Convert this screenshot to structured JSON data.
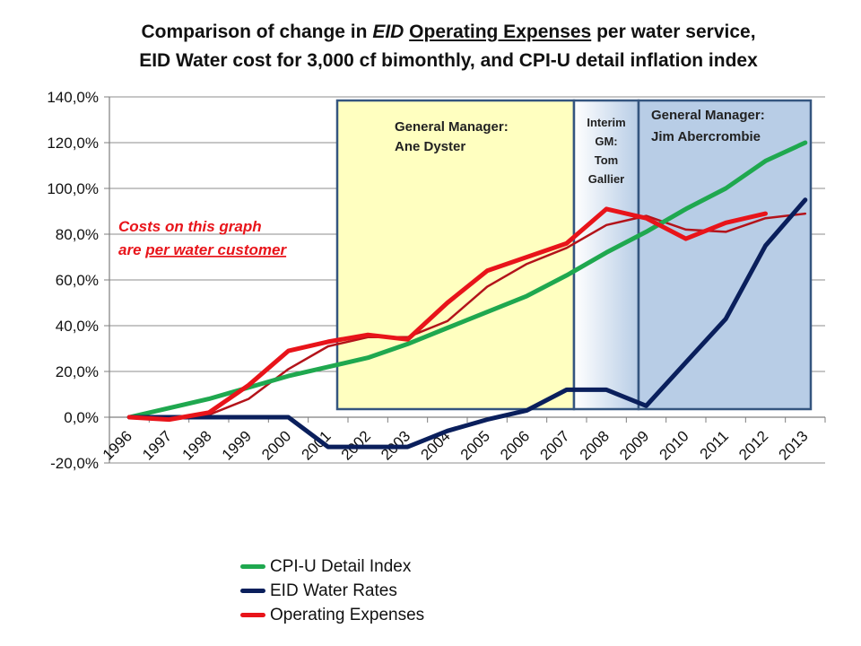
{
  "title": {
    "line1_pre": "Comparison of change in ",
    "line1_em": "EID",
    "line1_space": " ",
    "line1_u": "Operating Expenses",
    "line1_post": " per water service,",
    "line2": "EID Water cost for 3,000 cf bimonthly, and CPI-U detail inflation index"
  },
  "annotation": {
    "line1": "Costs on this graph",
    "line2_pre": "are ",
    "line2_u": "per water customer"
  },
  "periods": [
    {
      "label_lines": [
        "General Manager:",
        "Ane Dyster"
      ]
    },
    {
      "label_lines": [
        "Interim",
        "GM:",
        "Tom",
        "Gallier"
      ]
    },
    {
      "label_lines": [
        "General Manager:",
        "Jim Abercrombie"
      ]
    }
  ],
  "colors": {
    "cpi": "#1fa84f",
    "rates": "#0a1f5c",
    "opex": "#e8141a",
    "opex_thin": "#b3131a",
    "period1_fill": "#ffffc0",
    "period3_fill": "#b8cde6",
    "period_border": "#34557f",
    "annotation": "#e8141a"
  },
  "legend": [
    {
      "label": "CPI-U Detail Index",
      "color": "#1fa84f"
    },
    {
      "label": "EID Water Rates",
      "color": "#0a1f5c"
    },
    {
      "label": "Operating Expenses",
      "color": "#e8141a"
    }
  ],
  "chart_data": {
    "type": "line",
    "title": "Comparison of change in EID Operating Expenses per water service, EID Water cost for 3,000 cf bimonthly, and CPI-U detail inflation index",
    "categories": [
      "1996",
      "1997",
      "1998",
      "1999",
      "2000",
      "2001",
      "2002",
      "2003",
      "2004",
      "2005",
      "2006",
      "2007",
      "2008",
      "2009",
      "2010",
      "2011",
      "2012",
      "2013"
    ],
    "ylim": [
      -20,
      140
    ],
    "yticks": [
      -20,
      0,
      20,
      40,
      60,
      80,
      100,
      120,
      140
    ],
    "ytick_labels": [
      "-20,0%",
      "0,0%",
      "20,0%",
      "40,0%",
      "60,0%",
      "80,0%",
      "100,0%",
      "120,0%",
      "140,0%"
    ],
    "grid": true,
    "legend_position": "bottom",
    "series": [
      {
        "name": "CPI-U Detail Index",
        "values": [
          0,
          4,
          8,
          13,
          18,
          22,
          26,
          32,
          39,
          46,
          53,
          62,
          72,
          81,
          91,
          100,
          112,
          120
        ]
      },
      {
        "name": "EID Water Rates",
        "values": [
          0,
          0,
          0,
          0,
          0,
          -13,
          -13,
          -13,
          -6,
          -1,
          3,
          12,
          12,
          5,
          24,
          43,
          75,
          95
        ]
      },
      {
        "name": "Operating Expenses",
        "values": [
          0,
          -1,
          2,
          14,
          29,
          33,
          36,
          34,
          50,
          64,
          70,
          76,
          91,
          87,
          78,
          85,
          89,
          null
        ]
      },
      {
        "values": [
          0,
          -1,
          1,
          8,
          21,
          31,
          35,
          35,
          42,
          57,
          67,
          74,
          84,
          88,
          82,
          81,
          87,
          89
        ]
      }
    ]
  }
}
